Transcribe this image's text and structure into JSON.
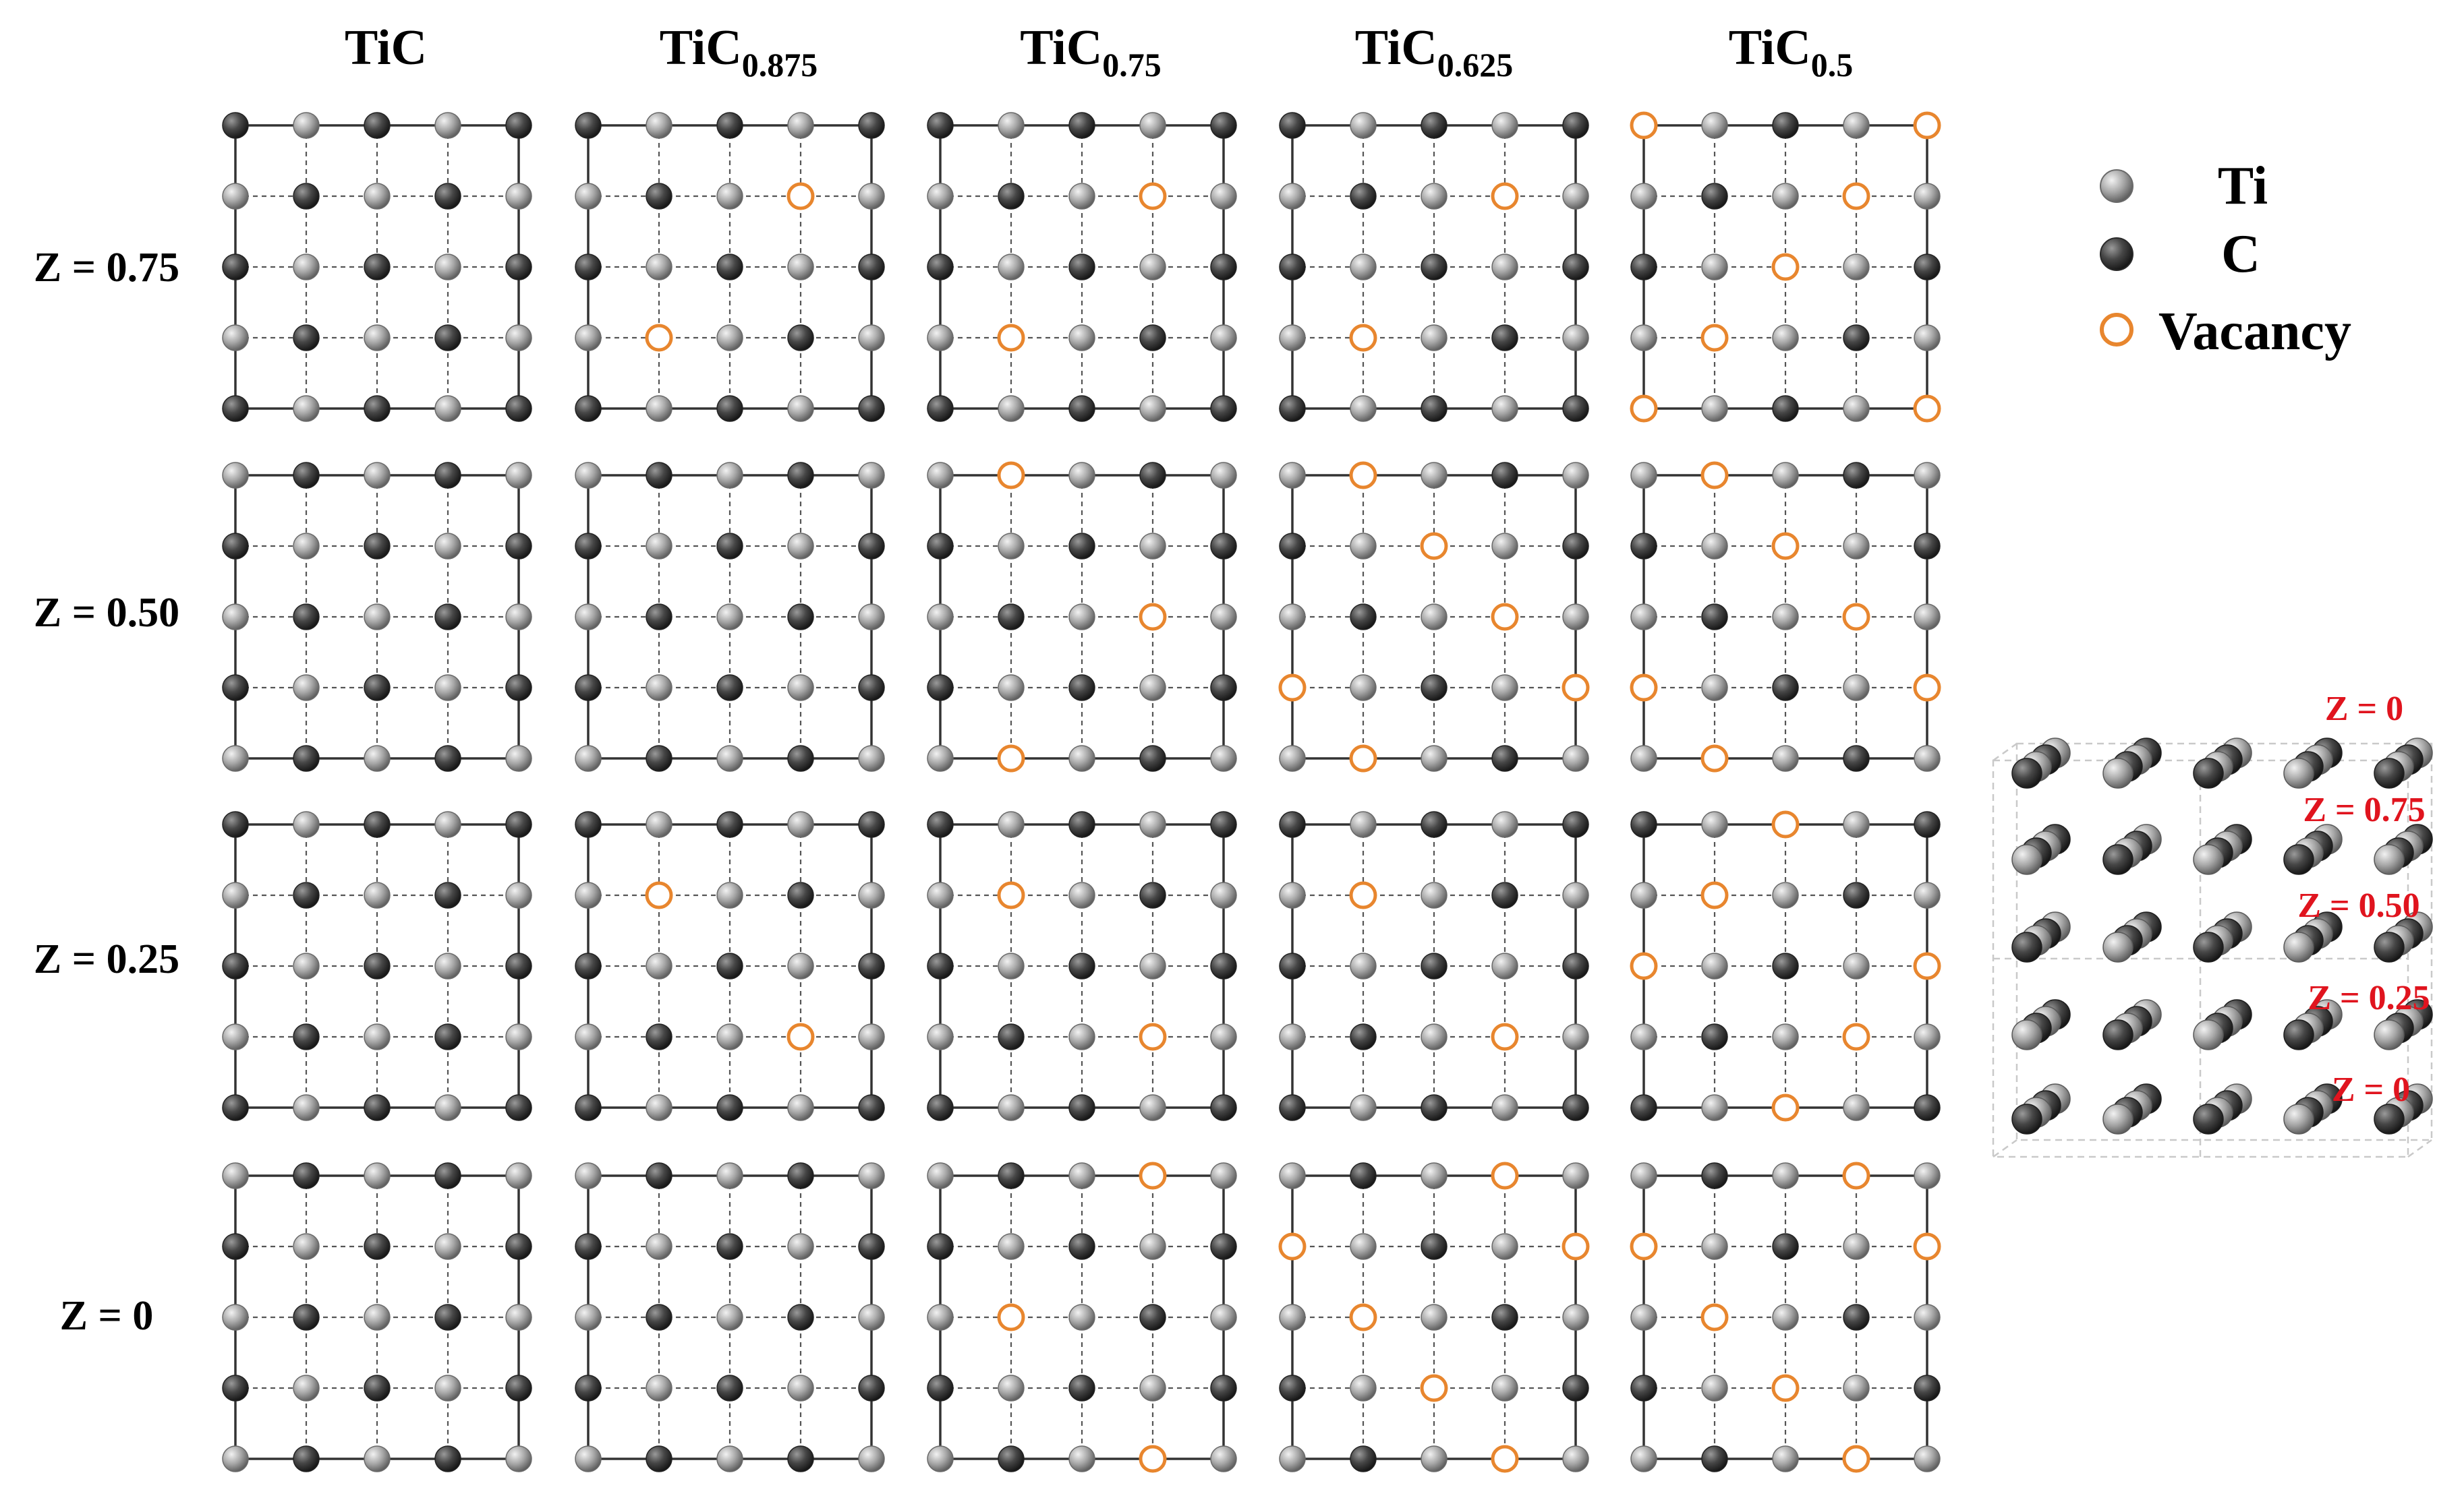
{
  "columns": [
    {
      "main": "TiC",
      "sub": ""
    },
    {
      "main": "TiC",
      "sub": "0.875"
    },
    {
      "main": "TiC",
      "sub": "0.75"
    },
    {
      "main": "TiC",
      "sub": "0.625"
    },
    {
      "main": "TiC",
      "sub": "0.5"
    }
  ],
  "rows": [
    "Z = 0.75",
    "Z = 0.50",
    "Z = 0.25",
    "Z = 0"
  ],
  "legend": {
    "ti": "Ti",
    "c": "C",
    "vacancy": "Vacancy"
  },
  "colors": {
    "ti": "#a6a6a6",
    "c": "#474747",
    "vacancy": "#e8862e",
    "z_label": "#e0141e"
  },
  "grids": [
    [
      [
        "CTCTC",
        "TCTCT",
        "CTCTC",
        "TCTCT",
        "CTCTC"
      ],
      [
        "CTCTC",
        "TCTVT",
        "CTCTC",
        "TVTCT",
        "CTCTC"
      ],
      [
        "CTCTC",
        "TCTVT",
        "CTCTC",
        "TVTCT",
        "CTCTC"
      ],
      [
        "CTCTC",
        "TCTVT",
        "CTCTC",
        "TVTCT",
        "CTCTC"
      ],
      [
        "VTCTV",
        "TCTVT",
        "CTVTC",
        "TVTCT",
        "VTCTV"
      ]
    ],
    [
      [
        "TCTCT",
        "CTCTC",
        "TCTCT",
        "CTCTC",
        "TCTCT"
      ],
      [
        "TCTCT",
        "CTCTC",
        "TCTCT",
        "CTCTC",
        "TCTCT"
      ],
      [
        "TVTCT",
        "CTCTC",
        "TCTVT",
        "CTCTC",
        "TVTCT"
      ],
      [
        "TVTCT",
        "CTVTC",
        "TCTVT",
        "VTCTV",
        "TVTCT"
      ],
      [
        "TVTCT",
        "CTVTC",
        "TCTVT",
        "VTCTV",
        "TVTCT"
      ]
    ],
    [
      [
        "CTCTC",
        "TCTCT",
        "CTCTC",
        "TCTCT",
        "CTCTC"
      ],
      [
        "CTCTC",
        "TVTCT",
        "CTCTC",
        "TCTVT",
        "CTCTC"
      ],
      [
        "CTCTC",
        "TVTCT",
        "CTCTC",
        "TCTVT",
        "CTCTC"
      ],
      [
        "CTCTC",
        "TVTCT",
        "CTCTC",
        "TCTVT",
        "CTCTC"
      ],
      [
        "CTVTC",
        "TVTCT",
        "VTCTV",
        "TCTVT",
        "CTVTC"
      ]
    ],
    [
      [
        "TCTCT",
        "CTCTC",
        "TCTCT",
        "CTCTC",
        "TCTCT"
      ],
      [
        "TCTCT",
        "CTCTC",
        "TCTCT",
        "CTCTC",
        "TCTCT"
      ],
      [
        "TCTVT",
        "CTCTC",
        "TVTCT",
        "CTCTC",
        "TCTVT"
      ],
      [
        "TCTVT",
        "VTCTV",
        "TVTCT",
        "CTVTC",
        "TCTVT"
      ],
      [
        "TCTVT",
        "VTCTV",
        "TVTCT",
        "CTVTC",
        "TCTVT"
      ]
    ]
  ],
  "structure": {
    "z_labels": [
      "Z = 0",
      "Z = 0.75",
      "Z = 0.50",
      "Z = 0.25",
      "Z = 0"
    ]
  }
}
